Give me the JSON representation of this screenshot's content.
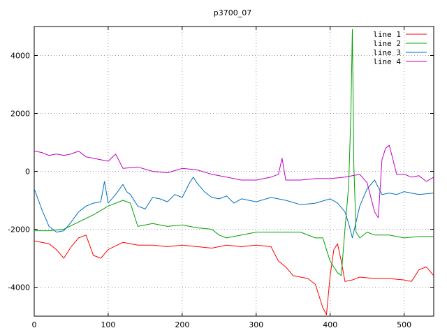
{
  "chart_data": {
    "type": "line",
    "title": "p3700_07",
    "xlabel": "",
    "ylabel": "",
    "xlim": [
      0,
      540
    ],
    "ylim": [
      -5000,
      5000
    ],
    "x_ticks": [
      0,
      100,
      200,
      300,
      400,
      500
    ],
    "y_ticks": [
      -4000,
      -2000,
      0,
      2000,
      4000
    ],
    "grid": true,
    "legend_position": "top-right",
    "series": [
      {
        "name": "line 1",
        "color": "#ff0000",
        "x": [
          0,
          10,
          20,
          30,
          40,
          50,
          60,
          70,
          80,
          90,
          100,
          120,
          140,
          160,
          180,
          200,
          220,
          240,
          260,
          280,
          300,
          320,
          330,
          340,
          350,
          360,
          370,
          380,
          390,
          395,
          400,
          405,
          410,
          415,
          420,
          430,
          440,
          460,
          480,
          500,
          510,
          520,
          530,
          540
        ],
        "values": [
          -2400,
          -2450,
          -2500,
          -2700,
          -3000,
          -2600,
          -2300,
          -2200,
          -2900,
          -3000,
          -2700,
          -2450,
          -2550,
          -2550,
          -2600,
          -2550,
          -2600,
          -2650,
          -2550,
          -2600,
          -2550,
          -2600,
          -3100,
          -3300,
          -3600,
          -3650,
          -3700,
          -3900,
          -4700,
          -4950,
          -3600,
          -2700,
          -2500,
          -3100,
          -3800,
          -3750,
          -3650,
          -3700,
          -3700,
          -3750,
          -3800,
          -3400,
          -3300,
          -3600
        ]
      },
      {
        "name": "line 2",
        "color": "#00a000",
        "x": [
          0,
          20,
          40,
          60,
          80,
          100,
          120,
          130,
          140,
          160,
          180,
          200,
          220,
          240,
          250,
          260,
          280,
          300,
          320,
          340,
          360,
          380,
          390,
          400,
          410,
          415,
          420,
          425,
          428,
          430,
          432,
          435,
          440,
          450,
          460,
          480,
          500,
          520,
          540
        ],
        "values": [
          -2050,
          -2050,
          -2000,
          -1750,
          -1500,
          -1200,
          -1000,
          -1100,
          -1900,
          -1800,
          -1900,
          -1850,
          -1950,
          -2000,
          -2200,
          -2300,
          -2200,
          -2100,
          -2100,
          -2100,
          -2100,
          -2300,
          -2300,
          -3100,
          -3500,
          -3600,
          -2000,
          -500,
          2000,
          4900,
          200,
          -2100,
          -2300,
          -2100,
          -2200,
          -2200,
          -2300,
          -2250,
          -2250
        ]
      },
      {
        "name": "line 3",
        "color": "#0070c0",
        "x": [
          0,
          10,
          20,
          30,
          40,
          50,
          60,
          70,
          80,
          90,
          95,
          100,
          110,
          120,
          125,
          130,
          140,
          150,
          160,
          170,
          180,
          190,
          200,
          210,
          215,
          220,
          230,
          240,
          250,
          260,
          270,
          280,
          300,
          320,
          340,
          360,
          380,
          400,
          410,
          420,
          425,
          430,
          440,
          450,
          460,
          470,
          480,
          490,
          500,
          520,
          540
        ],
        "values": [
          -600,
          -1300,
          -1900,
          -2100,
          -2050,
          -1750,
          -1400,
          -1200,
          -1100,
          -1050,
          -350,
          -1100,
          -800,
          -450,
          -700,
          -800,
          -1200,
          -1300,
          -900,
          -950,
          -1050,
          -800,
          -900,
          -400,
          -200,
          -400,
          -700,
          -900,
          -950,
          -850,
          -1100,
          -950,
          -1050,
          -900,
          -1000,
          -1150,
          -1100,
          -950,
          -1100,
          -1400,
          -1800,
          -2300,
          -1200,
          -600,
          -300,
          -800,
          -750,
          -800,
          -700,
          -800,
          -750
        ]
      },
      {
        "name": "line 4",
        "color": "#c000c0",
        "x": [
          0,
          10,
          20,
          30,
          40,
          50,
          60,
          70,
          80,
          90,
          100,
          110,
          120,
          140,
          160,
          180,
          200,
          220,
          240,
          260,
          280,
          300,
          320,
          330,
          335,
          340,
          360,
          380,
          400,
          420,
          440,
          450,
          460,
          465,
          470,
          475,
          480,
          490,
          500,
          510,
          520,
          530,
          540
        ],
        "values": [
          700,
          650,
          550,
          600,
          550,
          600,
          700,
          500,
          450,
          400,
          350,
          600,
          100,
          150,
          0,
          -50,
          100,
          50,
          -100,
          -200,
          -300,
          -300,
          -200,
          -100,
          450,
          -300,
          -300,
          -250,
          -250,
          -200,
          -100,
          -400,
          -1400,
          -1600,
          400,
          800,
          900,
          -100,
          -100,
          -200,
          -150,
          -350,
          -200
        ]
      }
    ]
  }
}
